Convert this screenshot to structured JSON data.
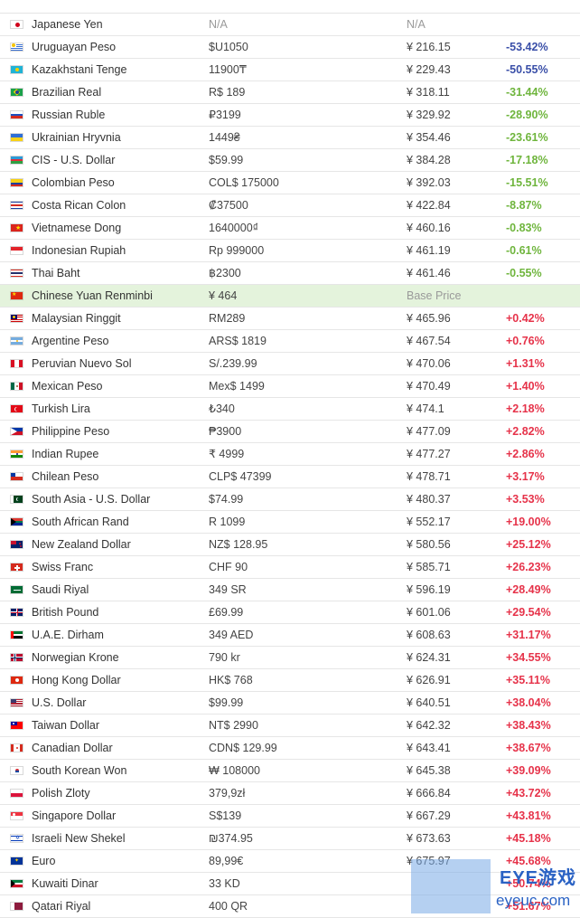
{
  "colors": {
    "row_border": "#e6e6e6",
    "base_row_bg": "#e4f3dc",
    "neg_strong": "#3a4fa8",
    "neg": "#6fb53d",
    "pos": "#e6334a"
  },
  "rows": [
    {
      "country_flag": "jp-flag",
      "currency": "Japanese Yen",
      "price": "N/A",
      "price_cny": "N/A",
      "diff": "",
      "diff_type": "none"
    },
    {
      "country_flag": "uy-flag",
      "currency": "Uruguayan Peso",
      "price": "$U1050",
      "price_cny": "¥ 216.15",
      "diff": "-53.42%",
      "diff_type": "neg1"
    },
    {
      "country_flag": "kz-flag",
      "currency": "Kazakhstani Tenge",
      "price": "11900₸",
      "price_cny": "¥ 229.43",
      "diff": "-50.55%",
      "diff_type": "neg1"
    },
    {
      "country_flag": "br-flag",
      "currency": "Brazilian Real",
      "price": "R$ 189",
      "price_cny": "¥ 318.11",
      "diff": "-31.44%",
      "diff_type": "neg2"
    },
    {
      "country_flag": "ru-flag",
      "currency": "Russian Ruble",
      "price": "₽3199",
      "price_cny": "¥ 329.92",
      "diff": "-28.90%",
      "diff_type": "neg2"
    },
    {
      "country_flag": "ua-flag",
      "currency": "Ukrainian Hryvnia",
      "price": "1449₴",
      "price_cny": "¥ 354.46",
      "diff": "-23.61%",
      "diff_type": "neg2"
    },
    {
      "country_flag": "az-flag",
      "currency": "CIS - U.S. Dollar",
      "price": "$59.99",
      "price_cny": "¥ 384.28",
      "diff": "-17.18%",
      "diff_type": "neg2"
    },
    {
      "country_flag": "co-flag",
      "currency": "Colombian Peso",
      "price": "COL$ 175000",
      "price_cny": "¥ 392.03",
      "diff": "-15.51%",
      "diff_type": "neg2"
    },
    {
      "country_flag": "cr-flag",
      "currency": "Costa Rican Colon",
      "price": "₡37500",
      "price_cny": "¥ 422.84",
      "diff": "-8.87%",
      "diff_type": "neg2"
    },
    {
      "country_flag": "vn-flag",
      "currency": "Vietnamese Dong",
      "price": "1640000₫",
      "price_cny": "¥ 460.16",
      "diff": "-0.83%",
      "diff_type": "neg2"
    },
    {
      "country_flag": "id-flag",
      "currency": "Indonesian Rupiah",
      "price": "Rp 999000",
      "price_cny": "¥ 461.19",
      "diff": "-0.61%",
      "diff_type": "neg2"
    },
    {
      "country_flag": "th-flag",
      "currency": "Thai Baht",
      "price": "฿2300",
      "price_cny": "¥ 461.46",
      "diff": "-0.55%",
      "diff_type": "neg2"
    },
    {
      "country_flag": "cn-flag",
      "currency": "Chinese Yuan Renminbi",
      "price": "¥ 464",
      "price_cny": "Base Price",
      "diff": "",
      "diff_type": "base"
    },
    {
      "country_flag": "my-flag",
      "currency": "Malaysian Ringgit",
      "price": "RM289",
      "price_cny": "¥ 465.96",
      "diff": "+0.42%",
      "diff_type": "pos"
    },
    {
      "country_flag": "ar-flag",
      "currency": "Argentine Peso",
      "price": "ARS$ 1819",
      "price_cny": "¥ 467.54",
      "diff": "+0.76%",
      "diff_type": "pos"
    },
    {
      "country_flag": "pe-flag",
      "currency": "Peruvian Nuevo Sol",
      "price": "S/.239.99",
      "price_cny": "¥ 470.06",
      "diff": "+1.31%",
      "diff_type": "pos"
    },
    {
      "country_flag": "mx-flag",
      "currency": "Mexican Peso",
      "price": "Mex$ 1499",
      "price_cny": "¥ 470.49",
      "diff": "+1.40%",
      "diff_type": "pos"
    },
    {
      "country_flag": "tr-flag",
      "currency": "Turkish Lira",
      "price": "₺340",
      "price_cny": "¥ 474.1",
      "diff": "+2.18%",
      "diff_type": "pos"
    },
    {
      "country_flag": "ph-flag",
      "currency": "Philippine Peso",
      "price": "₱3900",
      "price_cny": "¥ 477.09",
      "diff": "+2.82%",
      "diff_type": "pos"
    },
    {
      "country_flag": "in-flag",
      "currency": "Indian Rupee",
      "price": "₹ 4999",
      "price_cny": "¥ 477.27",
      "diff": "+2.86%",
      "diff_type": "pos"
    },
    {
      "country_flag": "cl-flag",
      "currency": "Chilean Peso",
      "price": "CLP$ 47399",
      "price_cny": "¥ 478.71",
      "diff": "+3.17%",
      "diff_type": "pos"
    },
    {
      "country_flag": "pk-flag",
      "currency": "South Asia - U.S. Dollar",
      "price": "$74.99",
      "price_cny": "¥ 480.37",
      "diff": "+3.53%",
      "diff_type": "pos"
    },
    {
      "country_flag": "za-flag",
      "currency": "South African Rand",
      "price": "R 1099",
      "price_cny": "¥ 552.17",
      "diff": "+19.00%",
      "diff_type": "pos"
    },
    {
      "country_flag": "nz-flag",
      "currency": "New Zealand Dollar",
      "price": "NZ$ 128.95",
      "price_cny": "¥ 580.56",
      "diff": "+25.12%",
      "diff_type": "pos"
    },
    {
      "country_flag": "ch-flag",
      "currency": "Swiss Franc",
      "price": "CHF 90",
      "price_cny": "¥ 585.71",
      "diff": "+26.23%",
      "diff_type": "pos"
    },
    {
      "country_flag": "sa-flag",
      "currency": "Saudi Riyal",
      "price": "349 SR",
      "price_cny": "¥ 596.19",
      "diff": "+28.49%",
      "diff_type": "pos"
    },
    {
      "country_flag": "gb-flag",
      "currency": "British Pound",
      "price": "£69.99",
      "price_cny": "¥ 601.06",
      "diff": "+29.54%",
      "diff_type": "pos"
    },
    {
      "country_flag": "ae-flag",
      "currency": "U.A.E. Dirham",
      "price": "349 AED",
      "price_cny": "¥ 608.63",
      "diff": "+31.17%",
      "diff_type": "pos"
    },
    {
      "country_flag": "no-flag",
      "currency": "Norwegian Krone",
      "price": "790 kr",
      "price_cny": "¥ 624.31",
      "diff": "+34.55%",
      "diff_type": "pos"
    },
    {
      "country_flag": "hk-flag",
      "currency": "Hong Kong Dollar",
      "price": "HK$ 768",
      "price_cny": "¥ 626.91",
      "diff": "+35.11%",
      "diff_type": "pos"
    },
    {
      "country_flag": "us-flag",
      "currency": "U.S. Dollar",
      "price": "$99.99",
      "price_cny": "¥ 640.51",
      "diff": "+38.04%",
      "diff_type": "pos"
    },
    {
      "country_flag": "tw-flag",
      "currency": "Taiwan Dollar",
      "price": "NT$ 2990",
      "price_cny": "¥ 642.32",
      "diff": "+38.43%",
      "diff_type": "pos"
    },
    {
      "country_flag": "ca-flag",
      "currency": "Canadian Dollar",
      "price": "CDN$ 129.99",
      "price_cny": "¥ 643.41",
      "diff": "+38.67%",
      "diff_type": "pos"
    },
    {
      "country_flag": "kr-flag",
      "currency": "South Korean Won",
      "price": "₩ 108000",
      "price_cny": "¥ 645.38",
      "diff": "+39.09%",
      "diff_type": "pos"
    },
    {
      "country_flag": "pl-flag",
      "currency": "Polish Zloty",
      "price": "379,9zł",
      "price_cny": "¥ 666.84",
      "diff": "+43.72%",
      "diff_type": "pos"
    },
    {
      "country_flag": "sg-flag",
      "currency": "Singapore Dollar",
      "price": "S$139",
      "price_cny": "¥ 667.29",
      "diff": "+43.81%",
      "diff_type": "pos"
    },
    {
      "country_flag": "il-flag",
      "currency": "Israeli New Shekel",
      "price": "₪374.95",
      "price_cny": "¥ 673.63",
      "diff": "+45.18%",
      "diff_type": "pos"
    },
    {
      "country_flag": "eu-flag",
      "currency": "Euro",
      "price": "89,99€",
      "price_cny": "¥ 675.97",
      "diff": "+45.68%",
      "diff_type": "pos"
    },
    {
      "country_flag": "kw-flag",
      "currency": "Kuwaiti Dinar",
      "price": "33 KD",
      "price_cny": "",
      "diff": "+50.74%",
      "diff_type": "pos"
    },
    {
      "country_flag": "qa-flag",
      "currency": "Qatari Riyal",
      "price": "400 QR",
      "price_cny": "",
      "diff": "+51.67%",
      "diff_type": "pos"
    }
  ],
  "watermark": {
    "title": "EYE游戏",
    "url": "eyeuc.com"
  }
}
